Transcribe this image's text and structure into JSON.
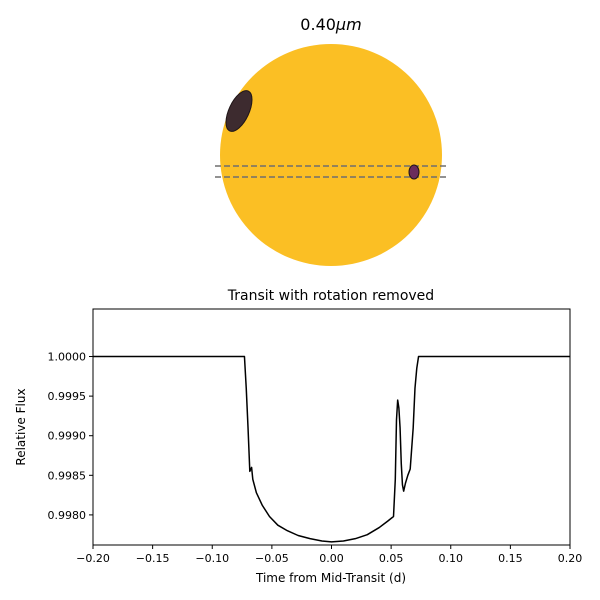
{
  "star_panel": {
    "title_value": "0.40",
    "title_unit": "μm",
    "star_color": "#fbbf24",
    "spot_color": "#3d2b2f",
    "planet_color": "#6b2d5c",
    "chord_color": "#6e6e6e"
  },
  "chart_data": {
    "type": "line",
    "title": "Transit with rotation removed",
    "xlabel": "Time from Mid-Transit (d)",
    "ylabel": "Relative Flux",
    "xlim": [
      -0.2,
      0.2
    ],
    "ylim": [
      0.99762,
      1.0006
    ],
    "xticks": [
      -0.2,
      -0.15,
      -0.1,
      -0.05,
      0.0,
      0.05,
      0.1,
      0.15,
      0.2
    ],
    "xtick_labels": [
      "−0.20",
      "−0.15",
      "−0.10",
      "−0.05",
      "0.00",
      "0.05",
      "0.10",
      "0.15",
      "0.20"
    ],
    "yticks": [
      0.998,
      0.9985,
      0.999,
      0.9995,
      1.0
    ],
    "ytick_labels": [
      "0.9980",
      "0.9985",
      "0.9990",
      "0.9995",
      "1.0000"
    ],
    "grid": false,
    "line_color": "#000000",
    "series": [
      {
        "x": [
          -0.2,
          -0.073,
          -0.0715,
          -0.07,
          -0.0685,
          -0.067,
          -0.066,
          -0.063,
          -0.058,
          -0.052,
          -0.045,
          -0.037,
          -0.028,
          -0.018,
          -0.008,
          0.0,
          0.01,
          0.02,
          0.03,
          0.04,
          0.047,
          0.052,
          0.0535,
          0.0545,
          0.0555,
          0.0565,
          0.0575,
          0.0585,
          0.0595,
          0.0605,
          0.062,
          0.064,
          0.066,
          0.0685,
          0.07,
          0.0715,
          0.073,
          0.2
        ],
        "y": [
          1.0,
          1.0,
          0.9996,
          0.9991,
          0.99855,
          0.9986,
          0.99845,
          0.99828,
          0.99812,
          0.99798,
          0.99787,
          0.9978,
          0.99774,
          0.9977,
          0.99767,
          0.99766,
          0.99767,
          0.9977,
          0.99775,
          0.99784,
          0.99792,
          0.99798,
          0.99845,
          0.9992,
          0.99945,
          0.99935,
          0.9991,
          0.99865,
          0.99838,
          0.9983,
          0.9984,
          0.9985,
          0.99858,
          0.9991,
          0.9996,
          0.99985,
          1.0,
          1.0
        ]
      }
    ]
  }
}
